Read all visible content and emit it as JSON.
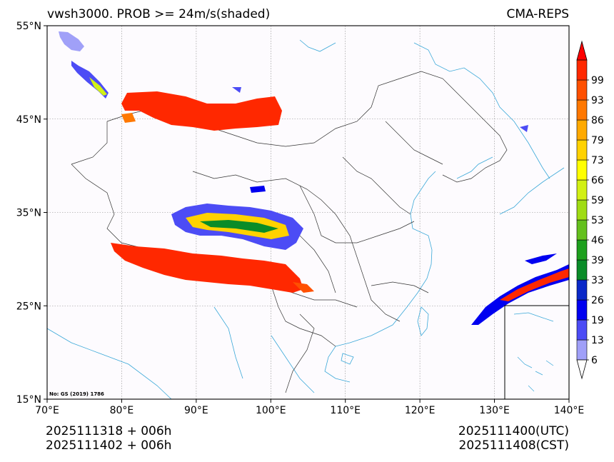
{
  "header": {
    "title": "vwsh3000. PROB >= 24m/s(shaded)",
    "model": "CMA-REPS"
  },
  "footer": {
    "init_utc": "2025111318  +  006h",
    "init_cst": "2025111402  +  006h",
    "valid_utc": "2025111400(UTC)",
    "valid_cst": "2025111408(CST)"
  },
  "map": {
    "approval_no": "No: GS (2019) 1786",
    "lon_range": [
      70,
      140
    ],
    "lat_range": [
      15,
      55
    ],
    "lon_ticks": [
      {
        "value": 70,
        "label": "70°E"
      },
      {
        "value": 80,
        "label": "80°E"
      },
      {
        "value": 90,
        "label": "90°E"
      },
      {
        "value": 100,
        "label": "100°E"
      },
      {
        "value": 110,
        "label": "110°E"
      },
      {
        "value": 120,
        "label": "120°E"
      },
      {
        "value": 130,
        "label": "130°E"
      },
      {
        "value": 140,
        "label": "140°E"
      }
    ],
    "lat_ticks": [
      {
        "value": 55,
        "label": "55°N"
      },
      {
        "value": 45,
        "label": "45°N"
      },
      {
        "value": 35,
        "label": "35°N"
      },
      {
        "value": 25,
        "label": "25°N"
      },
      {
        "value": 15,
        "label": "15°N"
      }
    ]
  },
  "colorbar": {
    "levels": [
      {
        "label": "6",
        "color": "#a0a0f8"
      },
      {
        "label": "13",
        "color": "#4c4cf5"
      },
      {
        "label": "19",
        "color": "#0000f0"
      },
      {
        "label": "26",
        "color": "#0a28c8"
      },
      {
        "label": "33",
        "color": "#0a8c28"
      },
      {
        "label": "39",
        "color": "#1ea01e"
      },
      {
        "label": "46",
        "color": "#64c01e"
      },
      {
        "label": "53",
        "color": "#a0dc14"
      },
      {
        "label": "59",
        "color": "#d2f014"
      },
      {
        "label": "66",
        "color": "#ffff00"
      },
      {
        "label": "73",
        "color": "#ffd200"
      },
      {
        "label": "79",
        "color": "#ffaa00"
      },
      {
        "label": "86",
        "color": "#ff7800"
      },
      {
        "label": "93",
        "color": "#ff5000"
      },
      {
        "label": "99",
        "color": "#ff2800"
      }
    ],
    "under_color": "#ffffff",
    "over_color": "#ff0000"
  }
}
